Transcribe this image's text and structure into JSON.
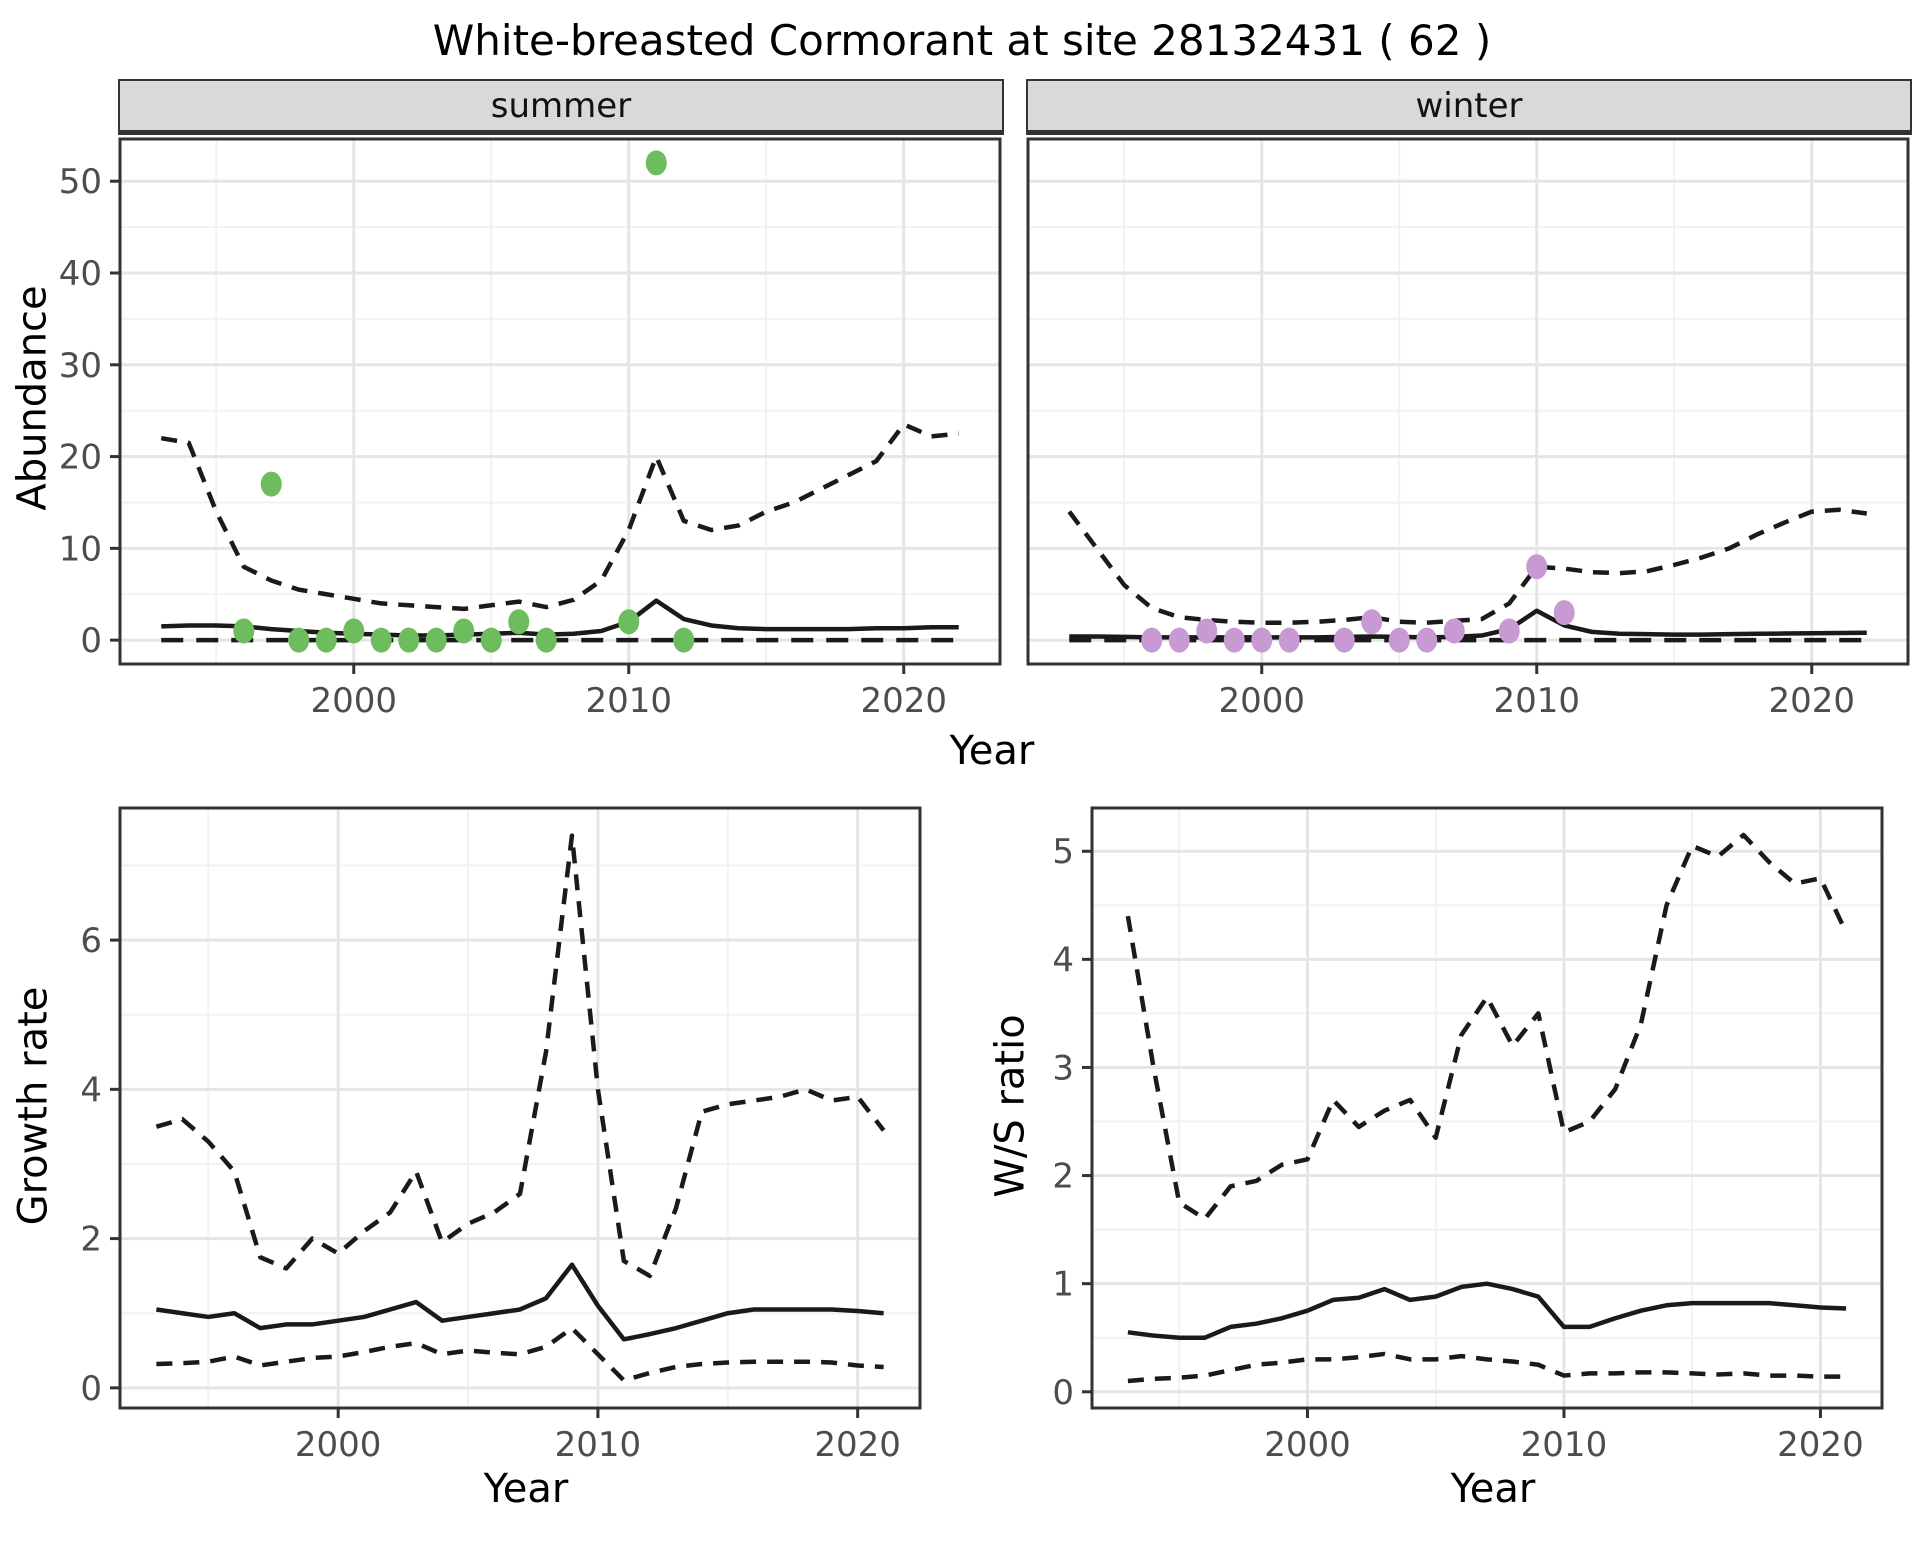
{
  "title": "White-breasted Cormorant at site 28132431 ( 62 )",
  "colors": {
    "summer_point": "#6dbc5e",
    "winter_point": "#c79ad3",
    "line": "#1a1a1a",
    "strip_bg": "#d9d9d9",
    "grid_major": "#e5e5e5",
    "grid_minor": "#f2f2f2",
    "axis_text": "#4d4d4d",
    "panel_border": "#333333",
    "panel_bg": "#ffffff"
  },
  "chart_data": [
    {
      "type": "line",
      "name": "abundance-summer",
      "facet": "summer",
      "ylabel": "Abundance",
      "xlabel": "Year",
      "xlim": [
        1991.5,
        2023.5
      ],
      "ylim": [
        -2.6,
        54.6
      ],
      "xticks": [
        2000,
        2010,
        2020
      ],
      "xticks_minor": [
        1995,
        2005,
        2015
      ],
      "yticks": [
        0,
        10,
        20,
        30,
        40,
        50
      ],
      "yticks_minor": [
        5,
        15,
        25,
        35,
        45
      ],
      "grid": true,
      "years": [
        1993,
        1994,
        1995,
        1996,
        1997,
        1998,
        1999,
        2000,
        2001,
        2002,
        2003,
        2004,
        2005,
        2006,
        2007,
        2008,
        2009,
        2010,
        2011,
        2012,
        2013,
        2014,
        2015,
        2016,
        2017,
        2018,
        2019,
        2020,
        2021,
        2022
      ],
      "series": [
        {
          "name": "lower CI",
          "style": "dashed-long",
          "values": [
            0,
            0,
            0,
            0,
            0,
            0,
            0,
            0,
            0,
            0,
            0,
            0,
            0,
            0,
            0,
            0,
            0,
            0,
            0,
            0,
            0,
            0,
            0,
            0,
            0,
            0,
            0,
            0,
            0,
            0
          ]
        },
        {
          "name": "median",
          "style": "solid",
          "values": [
            1.5,
            1.6,
            1.6,
            1.5,
            1.2,
            1,
            0.8,
            0.7,
            0.6,
            0.5,
            0.5,
            0.6,
            0.7,
            0.8,
            0.6,
            0.7,
            1,
            2,
            4.3,
            2.3,
            1.6,
            1.3,
            1.2,
            1.2,
            1.2,
            1.2,
            1.3,
            1.3,
            1.4,
            1.4
          ]
        },
        {
          "name": "upper CI",
          "style": "dashed",
          "values": [
            22,
            21.5,
            14,
            8,
            6.5,
            5.5,
            5,
            4.5,
            4,
            3.8,
            3.6,
            3.4,
            3.8,
            4.2,
            3.6,
            4.4,
            6.5,
            12,
            20,
            13,
            12,
            12.5,
            14,
            15,
            16.5,
            18,
            19.5,
            23.5,
            22.2,
            22.5
          ]
        }
      ],
      "points": {
        "name": "observed counts",
        "color_key": "summer_point",
        "color": "#6dbc5e",
        "data": [
          [
            1996,
            1
          ],
          [
            1997,
            17
          ],
          [
            1998,
            0
          ],
          [
            1999,
            0
          ],
          [
            2000,
            1
          ],
          [
            2001,
            0
          ],
          [
            2002,
            0
          ],
          [
            2003,
            0
          ],
          [
            2004,
            1
          ],
          [
            2005,
            0
          ],
          [
            2006,
            2
          ],
          [
            2007,
            0
          ],
          [
            2010,
            2
          ],
          [
            2011,
            52
          ],
          [
            2012,
            0
          ]
        ]
      }
    },
    {
      "type": "line",
      "name": "abundance-winter",
      "facet": "winter",
      "ylabel": "Abundance",
      "xlabel": "Year",
      "xlim": [
        1991.5,
        2023.5
      ],
      "ylim": [
        -2.6,
        54.6
      ],
      "xticks": [
        2000,
        2010,
        2020
      ],
      "xticks_minor": [
        1995,
        2005,
        2015
      ],
      "yticks": [
        0,
        10,
        20,
        30,
        40,
        50
      ],
      "yticks_minor": [
        5,
        15,
        25,
        35,
        45
      ],
      "grid": true,
      "years": [
        1993,
        1994,
        1995,
        1996,
        1997,
        1998,
        1999,
        2000,
        2001,
        2002,
        2003,
        2004,
        2005,
        2006,
        2007,
        2008,
        2009,
        2010,
        2011,
        2012,
        2013,
        2014,
        2015,
        2016,
        2017,
        2018,
        2019,
        2020,
        2021,
        2022
      ],
      "series": [
        {
          "name": "lower CI",
          "style": "dashed-long",
          "values": [
            0,
            0,
            0,
            0,
            0,
            0,
            0,
            0,
            0,
            0,
            0,
            0,
            0,
            0,
            0,
            0,
            0,
            0,
            0,
            0,
            0,
            0,
            0,
            0,
            0,
            0,
            0,
            0,
            0,
            0
          ]
        },
        {
          "name": "median",
          "style": "solid",
          "values": [
            0.4,
            0.4,
            0.35,
            0.3,
            0.3,
            0.3,
            0.3,
            0.3,
            0.3,
            0.3,
            0.35,
            0.4,
            0.35,
            0.3,
            0.35,
            0.5,
            1.2,
            3.2,
            1.6,
            0.9,
            0.7,
            0.65,
            0.6,
            0.6,
            0.65,
            0.7,
            0.72,
            0.75,
            0.78,
            0.8
          ]
        },
        {
          "name": "upper CI",
          "style": "dashed",
          "values": [
            14,
            10,
            6,
            3.5,
            2.5,
            2.2,
            2,
            1.9,
            1.9,
            2,
            2.2,
            2.5,
            2,
            1.9,
            2.1,
            2.3,
            4,
            8,
            7.8,
            7.4,
            7.3,
            7.5,
            8.2,
            9,
            10,
            11.5,
            12.8,
            14,
            14.2,
            13.8
          ]
        }
      ],
      "points": {
        "name": "observed counts",
        "color_key": "winter_point",
        "color": "#c79ad3",
        "data": [
          [
            1996,
            0
          ],
          [
            1997,
            0
          ],
          [
            1998,
            1
          ],
          [
            1999,
            0
          ],
          [
            2000,
            0
          ],
          [
            2001,
            0
          ],
          [
            2003,
            0
          ],
          [
            2004,
            2
          ],
          [
            2005,
            0
          ],
          [
            2006,
            0
          ],
          [
            2007,
            1
          ],
          [
            2009,
            1
          ],
          [
            2010,
            8
          ],
          [
            2011,
            3
          ]
        ]
      }
    },
    {
      "type": "line",
      "name": "growth-rate",
      "ylabel": "Growth rate",
      "xlabel": "Year",
      "xlim": [
        1991.6,
        2022.4
      ],
      "ylim": [
        -0.27,
        7.77
      ],
      "xticks": [
        2000,
        2010,
        2020
      ],
      "xticks_minor": [
        1995,
        2005,
        2015
      ],
      "yticks": [
        0,
        2,
        4,
        6
      ],
      "yticks_minor": [
        1,
        3,
        5,
        7
      ],
      "grid": true,
      "years": [
        1993,
        1994,
        1995,
        1996,
        1997,
        1998,
        1999,
        2000,
        2001,
        2002,
        2003,
        2004,
        2005,
        2006,
        2007,
        2008,
        2009,
        2010,
        2011,
        2012,
        2013,
        2014,
        2015,
        2016,
        2017,
        2018,
        2019,
        2020,
        2021
      ],
      "series": [
        {
          "name": "lower CI",
          "style": "dashed",
          "values": [
            0.32,
            0.33,
            0.35,
            0.42,
            0.3,
            0.35,
            0.4,
            0.42,
            0.48,
            0.55,
            0.6,
            0.45,
            0.5,
            0.47,
            0.45,
            0.55,
            0.8,
            0.45,
            0.1,
            0.2,
            0.28,
            0.32,
            0.34,
            0.35,
            0.35,
            0.35,
            0.34,
            0.3,
            0.28
          ]
        },
        {
          "name": "median",
          "style": "solid",
          "values": [
            1.05,
            1,
            0.95,
            1,
            0.8,
            0.85,
            0.85,
            0.9,
            0.95,
            1.05,
            1.15,
            0.9,
            0.95,
            1,
            1.05,
            1.2,
            1.65,
            1.1,
            0.65,
            0.72,
            0.8,
            0.9,
            1,
            1.05,
            1.05,
            1.05,
            1.05,
            1.03,
            1
          ]
        },
        {
          "name": "upper CI",
          "style": "dashed",
          "values": [
            3.5,
            3.6,
            3.3,
            2.9,
            1.75,
            1.6,
            2,
            1.8,
            2.1,
            2.35,
            2.9,
            1.95,
            2.2,
            2.35,
            2.6,
            4.5,
            7.4,
            4,
            1.7,
            1.5,
            2.4,
            3.7,
            3.8,
            3.85,
            3.9,
            4,
            3.85,
            3.9,
            3.45
          ]
        }
      ]
    },
    {
      "type": "line",
      "name": "ws-ratio",
      "ylabel": "W/S ratio",
      "xlabel": "Year",
      "xlim": [
        1991.6,
        2022.4
      ],
      "ylim": [
        -0.15,
        5.4
      ],
      "xticks": [
        2000,
        2010,
        2020
      ],
      "xticks_minor": [
        1995,
        2005,
        2015
      ],
      "yticks": [
        0,
        1,
        2,
        3,
        4,
        5
      ],
      "yticks_minor": [
        0.5,
        1.5,
        2.5,
        3.5,
        4.5
      ],
      "grid": true,
      "years": [
        1993,
        1994,
        1995,
        1996,
        1997,
        1998,
        1999,
        2000,
        2001,
        2002,
        2003,
        2004,
        2005,
        2006,
        2007,
        2008,
        2009,
        2010,
        2011,
        2012,
        2013,
        2014,
        2015,
        2016,
        2017,
        2018,
        2019,
        2020,
        2021
      ],
      "series": [
        {
          "name": "lower CI",
          "style": "dashed",
          "values": [
            0.1,
            0.12,
            0.13,
            0.15,
            0.2,
            0.25,
            0.27,
            0.3,
            0.3,
            0.32,
            0.35,
            0.3,
            0.3,
            0.33,
            0.3,
            0.28,
            0.25,
            0.15,
            0.17,
            0.17,
            0.18,
            0.18,
            0.17,
            0.16,
            0.17,
            0.15,
            0.15,
            0.14,
            0.14
          ]
        },
        {
          "name": "median",
          "style": "solid",
          "values": [
            0.55,
            0.52,
            0.5,
            0.5,
            0.6,
            0.63,
            0.68,
            0.75,
            0.85,
            0.87,
            0.95,
            0.85,
            0.88,
            0.97,
            1,
            0.95,
            0.88,
            0.6,
            0.6,
            0.68,
            0.75,
            0.8,
            0.82,
            0.82,
            0.82,
            0.82,
            0.8,
            0.78,
            0.77
          ]
        },
        {
          "name": "upper CI",
          "style": "dashed",
          "values": [
            4.4,
            3,
            1.75,
            1.6,
            1.9,
            1.95,
            2.1,
            2.15,
            2.7,
            2.45,
            2.6,
            2.7,
            2.35,
            3.3,
            3.65,
            3.2,
            3.5,
            2.4,
            2.5,
            2.8,
            3.4,
            4.5,
            5.05,
            4.95,
            5.15,
            4.9,
            4.7,
            4.75,
            4.25
          ]
        }
      ]
    }
  ]
}
